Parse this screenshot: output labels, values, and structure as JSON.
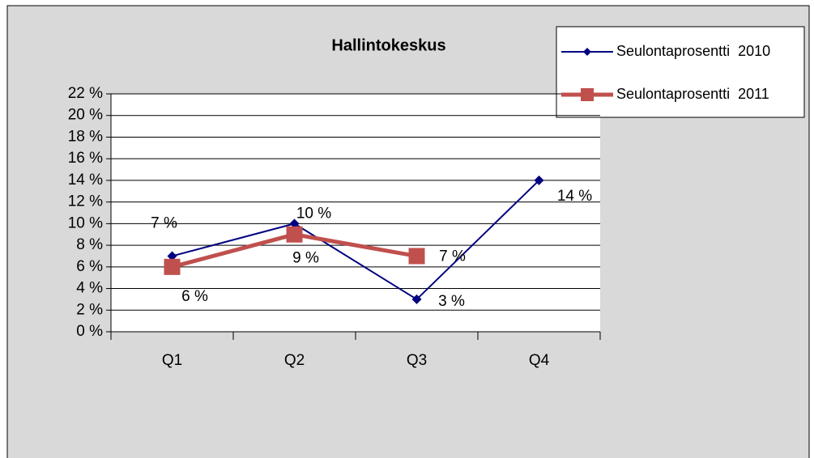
{
  "chart_data": {
    "type": "line",
    "title": "Hallintokeskus",
    "categories": [
      "Q1",
      "Q2",
      "Q3",
      "Q4"
    ],
    "series": [
      {
        "name": "Seulontaprosentti  2010",
        "color": "#000080",
        "marker": "diamond",
        "values": [
          7,
          10,
          3,
          14
        ],
        "value_labels": [
          "7 %",
          "10 %",
          "3 %",
          "14 %"
        ]
      },
      {
        "name": "Seulontaprosentti  2011",
        "color": "#c0504d",
        "marker": "square",
        "values": [
          6,
          9,
          7,
          null
        ],
        "value_labels": [
          "6 %",
          "9 %",
          "7 %",
          null
        ]
      }
    ],
    "ylim": [
      0,
      22
    ],
    "yticks": [
      {
        "value": 0,
        "label": "0 %"
      },
      {
        "value": 2,
        "label": "2 %"
      },
      {
        "value": 4,
        "label": "4 %"
      },
      {
        "value": 6,
        "label": "6 %"
      },
      {
        "value": 8,
        "label": "8 %"
      },
      {
        "value": 10,
        "label": "10 %"
      },
      {
        "value": 12,
        "label": "12 %"
      },
      {
        "value": 14,
        "label": "14 %"
      },
      {
        "value": 16,
        "label": "16 %"
      },
      {
        "value": 18,
        "label": "18 %"
      },
      {
        "value": 20,
        "label": "20 %"
      },
      {
        "value": 22,
        "label": "22 %"
      }
    ],
    "grid": true,
    "legend": "top-right"
  }
}
